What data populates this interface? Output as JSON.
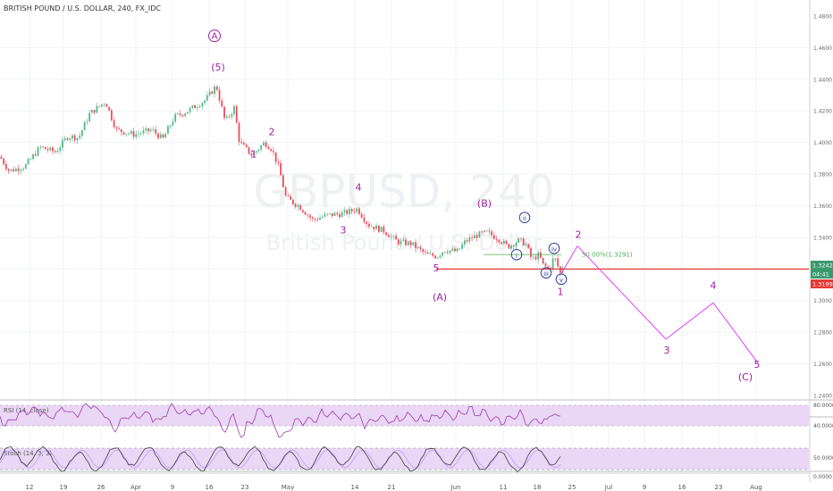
{
  "header": {
    "title": "BRITISH POUND / U.S. DOLLAR, 240, FX_IDC"
  },
  "watermark": {
    "symbol": "GBPUSD, 240",
    "name": "British Pound / U.S. Dollar"
  },
  "price_tags": {
    "last": "1.3242",
    "countdown": "04:41",
    "line": "1.3199"
  },
  "fib_label": "50.00%(1.3291)",
  "colors": {
    "up": "#53b987",
    "down": "#eb4d5c",
    "wave": "#a020a0",
    "projection": "#e040fb",
    "hline": "#e53935",
    "fib": "#4caf50",
    "grid": "#f0f3f7",
    "osc_band": "#ead6f5",
    "rsi_line": "#9a3fae",
    "stoch_k": "#3f3f3f",
    "stoch_d": "#c8a0ff"
  },
  "chart_data": {
    "type": "candlestick",
    "title": "BRITISH POUND / U.S. DOLLAR, 240, FX_IDC",
    "ylim": [
      1.24,
      1.48
    ],
    "y_ticks": [
      "1.4800",
      "1.4600",
      "1.4400",
      "1.4200",
      "1.4000",
      "1.3800",
      "1.3600",
      "1.3400",
      "1.3200",
      "1.3000",
      "1.2800",
      "1.2600",
      "1.2400"
    ],
    "x_ticks": [
      "12",
      "19",
      "26",
      "Apr",
      "9",
      "16",
      "23",
      "May",
      "14",
      "21",
      "Jun",
      "11",
      "18",
      "25",
      "Jul",
      "9",
      "16",
      "23",
      "Aug"
    ],
    "price_path": [
      [
        0,
        1.391
      ],
      [
        10,
        1.382
      ],
      [
        22,
        1.384
      ],
      [
        28,
        1.385
      ],
      [
        45,
        1.397
      ],
      [
        62,
        1.394
      ],
      [
        76,
        1.404
      ],
      [
        88,
        1.403
      ],
      [
        100,
        1.418
      ],
      [
        118,
        1.426
      ],
      [
        130,
        1.408
      ],
      [
        150,
        1.405
      ],
      [
        170,
        1.408
      ],
      [
        182,
        1.402
      ],
      [
        195,
        1.416
      ],
      [
        210,
        1.42
      ],
      [
        230,
        1.427
      ],
      [
        242,
        1.436
      ],
      [
        252,
        1.413
      ],
      [
        262,
        1.422
      ],
      [
        268,
        1.4
      ],
      [
        282,
        1.392
      ],
      [
        296,
        1.4
      ],
      [
        304,
        1.396
      ],
      [
        312,
        1.384
      ],
      [
        320,
        1.365
      ],
      [
        336,
        1.359
      ],
      [
        350,
        1.351
      ],
      [
        366,
        1.354
      ],
      [
        384,
        1.355
      ],
      [
        400,
        1.358
      ],
      [
        412,
        1.348
      ],
      [
        430,
        1.344
      ],
      [
        445,
        1.337
      ],
      [
        460,
        1.336
      ],
      [
        477,
        1.329
      ],
      [
        489,
        1.328
      ],
      [
        497,
        1.332
      ],
      [
        512,
        1.331
      ],
      [
        520,
        1.337
      ],
      [
        532,
        1.341
      ],
      [
        545,
        1.343
      ],
      [
        558,
        1.339
      ],
      [
        568,
        1.334
      ],
      [
        580,
        1.338
      ],
      [
        588,
        1.336
      ],
      [
        595,
        1.326
      ],
      [
        603,
        1.329
      ],
      [
        608,
        1.322
      ],
      [
        615,
        1.32
      ],
      [
        620,
        1.328
      ],
      [
        627,
        1.317
      ],
      [
        631,
        1.3242
      ]
    ],
    "candle_count": 230,
    "horizontal_line": 1.3199,
    "fibonacci": {
      "level": "50.00%",
      "price": 1.3291
    },
    "wave_labels": [
      {
        "text": "A",
        "circled": true,
        "x": 240,
        "price": 1.4655
      },
      {
        "text": "(5)",
        "x": 244,
        "price": 1.4455
      },
      {
        "text": "1",
        "x": 284,
        "price": 1.3905
      },
      {
        "text": "2",
        "x": 304,
        "price": 1.4045
      },
      {
        "text": "3",
        "x": 384,
        "price": 1.3425
      },
      {
        "text": "4",
        "x": 401,
        "price": 1.3695
      },
      {
        "text": "5",
        "x": 488,
        "price": 1.3185
      },
      {
        "text": "(A)",
        "x": 492,
        "price": 1.3
      },
      {
        "text": "(B)",
        "x": 542,
        "price": 1.3595
      },
      {
        "text": "ii",
        "circled": true,
        "x": 587,
        "price": 1.3505
      },
      {
        "text": "i",
        "circled": true,
        "x": 578,
        "price": 1.327
      },
      {
        "text": "iv",
        "circled": true,
        "x": 620,
        "price": 1.331
      },
      {
        "text": "iii",
        "circled": true,
        "x": 611,
        "price": 1.3155
      },
      {
        "text": "v",
        "circled": true,
        "x": 628,
        "price": 1.3115
      },
      {
        "text": "1",
        "x": 627,
        "price": 1.3035
      },
      {
        "text": "2",
        "x": 647,
        "price": 1.3395
      },
      {
        "text": "3",
        "x": 746,
        "price": 1.2665
      },
      {
        "text": "4",
        "x": 798,
        "price": 1.3075
      },
      {
        "text": "5",
        "x": 847,
        "price": 1.2575
      },
      {
        "text": "(C)",
        "x": 834,
        "price": 1.2495
      }
    ],
    "projection": [
      [
        628,
        1.317
      ],
      [
        646,
        1.3345
      ],
      [
        745,
        1.2755
      ],
      [
        798,
        1.2985
      ],
      [
        848,
        1.2605
      ]
    ],
    "indicators": [
      {
        "name": "RSI (14, close)",
        "levels": [
          "80.0000",
          "40.0000"
        ]
      },
      {
        "name": "Stoch (14, 3, 3)",
        "levels": [
          "50.0000",
          "0.0000"
        ]
      }
    ]
  }
}
